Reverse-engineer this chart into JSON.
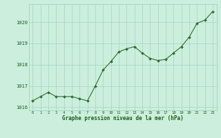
{
  "x": [
    0,
    1,
    2,
    3,
    4,
    5,
    6,
    7,
    8,
    9,
    10,
    11,
    12,
    13,
    14,
    15,
    16,
    17,
    18,
    19,
    20,
    21,
    22,
    23
  ],
  "y": [
    1016.3,
    1016.5,
    1016.7,
    1016.5,
    1016.5,
    1016.5,
    1016.4,
    1016.3,
    1017.0,
    1017.75,
    1018.15,
    1018.6,
    1018.75,
    1018.85,
    1018.55,
    1018.3,
    1018.2,
    1018.25,
    1018.55,
    1018.85,
    1019.3,
    1019.95,
    1020.1,
    1020.5
  ],
  "line_color": "#2d6e2d",
  "marker_color": "#2d6e2d",
  "bg_color": "#cceedd",
  "grid_color": "#99ccbb",
  "xlabel": "Graphe pression niveau de la mer (hPa)",
  "xlabel_color": "#1a5f1a",
  "tick_color": "#1a5f1a",
  "ylabel_ticks": [
    1016,
    1017,
    1018,
    1019,
    1020
  ],
  "xlim": [
    -0.5,
    23.5
  ],
  "ylim": [
    1015.85,
    1020.85
  ],
  "figsize": [
    3.2,
    2.0
  ],
  "dpi": 100
}
